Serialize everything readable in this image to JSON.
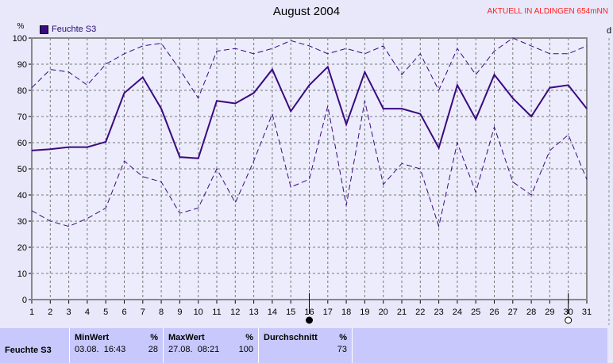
{
  "header": {
    "title": "August 2004",
    "station": "AKTUELL IN ALDINGEN 654mNN",
    "right_axis_label": "d"
  },
  "chart_data": {
    "type": "line",
    "title": "August 2004",
    "ylabel": "%",
    "ylim": [
      0,
      100
    ],
    "yticks": [
      0,
      10,
      20,
      30,
      40,
      50,
      60,
      70,
      80,
      90,
      100
    ],
    "x": [
      1,
      2,
      3,
      4,
      5,
      6,
      7,
      8,
      9,
      10,
      11,
      12,
      13,
      14,
      15,
      16,
      17,
      18,
      19,
      20,
      21,
      22,
      23,
      24,
      25,
      26,
      27,
      28,
      29,
      30,
      31
    ],
    "grid": true,
    "legend": "top-left",
    "legend_entries": [
      "Feuchte S3"
    ],
    "color": "#3a0a80",
    "series": [
      {
        "name": "Feuchte S3",
        "style": "solid",
        "values": [
          57,
          57.5,
          58.3,
          58.3,
          60.3,
          79,
          85,
          73,
          54.5,
          54,
          76,
          75,
          79,
          88,
          72,
          82,
          89,
          67,
          87,
          73,
          73,
          71,
          58,
          82,
          69,
          86,
          77,
          70,
          81,
          82,
          73
        ]
      },
      {
        "style": "dashed",
        "values": [
          81,
          88,
          87,
          82,
          90,
          94,
          97,
          98,
          88,
          77,
          95,
          96,
          94,
          96,
          99,
          97,
          94,
          96,
          94,
          97,
          86,
          94,
          80,
          96,
          86,
          95,
          100,
          97,
          94,
          94,
          97
        ]
      },
      {
        "style": "dashed",
        "values": [
          34,
          30,
          28,
          31,
          35,
          53,
          47,
          45,
          33,
          35,
          50,
          37,
          53,
          71,
          43,
          46,
          74,
          36,
          76,
          44,
          52,
          50,
          28,
          60,
          41,
          66,
          45,
          40,
          57,
          63,
          46
        ]
      }
    ],
    "moon_markers": [
      {
        "day": 16,
        "phase": "new-moon"
      },
      {
        "day": 30,
        "phase": "full-moon"
      }
    ]
  },
  "stats": {
    "row_label": "Feuchte S3",
    "min": {
      "header": "MinWert",
      "unit": "%",
      "time": "03.08.  16:43",
      "value": "28"
    },
    "max": {
      "header": "MaxWert",
      "unit": "%",
      "time": "27.08.  08:21",
      "value": "100"
    },
    "avg": {
      "header": "Durchschnitt",
      "unit": "%",
      "value": "73"
    }
  }
}
